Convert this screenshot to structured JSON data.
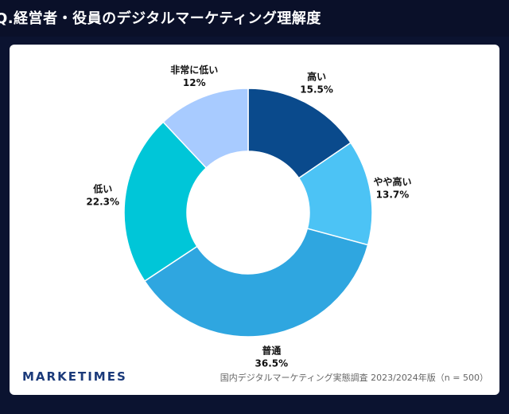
{
  "header": {
    "title": "Q.経営者・役員のデジタルマーケティング理解度"
  },
  "footer": {
    "brand": "MARKETIMES",
    "source": "国内デジタルマーケティング実態調査 2023/2024年版（n = 500）"
  },
  "chart_data": {
    "type": "pie",
    "donut": true,
    "title": "Q.経営者・役員のデジタルマーケティング理解度",
    "categories": [
      "高い",
      "やや高い",
      "普通",
      "低い",
      "非常に低い"
    ],
    "values": [
      15.5,
      13.7,
      36.5,
      22.3,
      12.0
    ],
    "labels": [
      "15.5%",
      "13.7%",
      "36.5%",
      "22.3%",
      "12%"
    ],
    "colors": [
      "#0a4a8c",
      "#4cc3f5",
      "#2fa6e0",
      "#00c6d8",
      "#a8cbff"
    ]
  }
}
